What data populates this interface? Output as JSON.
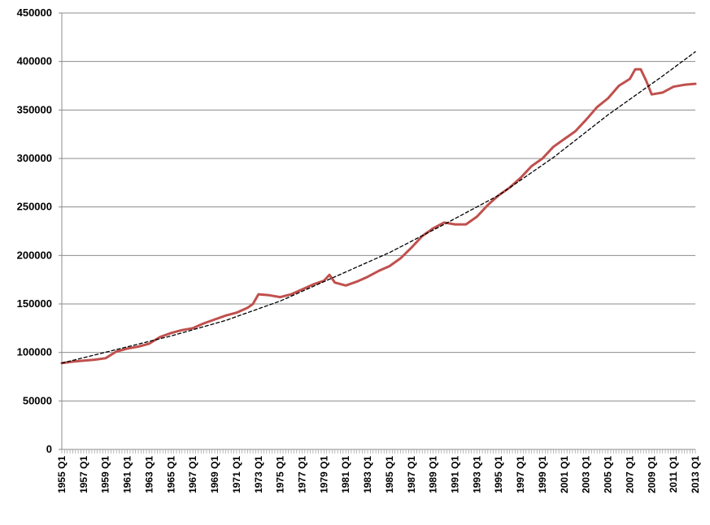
{
  "chart_data": {
    "type": "line",
    "title": "",
    "xlabel": "",
    "ylabel": "",
    "ylim": [
      0,
      450000
    ],
    "yticks": [
      0,
      50000,
      100000,
      150000,
      200000,
      250000,
      300000,
      350000,
      400000,
      450000
    ],
    "ytick_labels": [
      "0",
      "50000",
      "100000",
      "150000",
      "200000",
      "250000",
      "300000",
      "350000",
      "400000",
      "450000"
    ],
    "x_range": [
      "1955 Q1",
      "2013 Q1"
    ],
    "xtick_labels": [
      "1955 Q1",
      "1957 Q1",
      "1959 Q1",
      "1961 Q1",
      "1963 Q1",
      "1965 Q1",
      "1967 Q1",
      "1969 Q1",
      "1971 Q1",
      "1973 Q1",
      "1975 Q1",
      "1977 Q1",
      "1979 Q1",
      "1981 Q1",
      "1983 Q1",
      "1985 Q1",
      "1987 Q1",
      "1989 Q1",
      "1991 Q1",
      "1993 Q1",
      "1995 Q1",
      "1997 Q1",
      "1999 Q1",
      "2001 Q1",
      "2003 Q1",
      "2005 Q1",
      "2007 Q1",
      "2009 Q1",
      "2011 Q1",
      "2013 Q1"
    ],
    "grid": true,
    "legend": "none",
    "series": [
      {
        "style": "solid",
        "color": "#c0504d",
        "points": [
          [
            "1955 Q1",
            89000
          ],
          [
            "1956 Q1",
            90500
          ],
          [
            "1957 Q1",
            91500
          ],
          [
            "1958 Q1",
            92500
          ],
          [
            "1959 Q1",
            94000
          ],
          [
            "1960 Q1",
            101000
          ],
          [
            "1961 Q1",
            104000
          ],
          [
            "1962 Q1",
            106000
          ],
          [
            "1963 Q1",
            109000
          ],
          [
            "1964 Q1",
            116000
          ],
          [
            "1965 Q1",
            120000
          ],
          [
            "1966 Q1",
            123000
          ],
          [
            "1967 Q1",
            125000
          ],
          [
            "1968 Q1",
            130000
          ],
          [
            "1969 Q1",
            134000
          ],
          [
            "1970 Q1",
            138000
          ],
          [
            "1971 Q1",
            141000
          ],
          [
            "1972 Q1",
            146000
          ],
          [
            "1972 Q3",
            150000
          ],
          [
            "1973 Q1",
            160000
          ],
          [
            "1974 Q1",
            159000
          ],
          [
            "1975 Q1",
            157000
          ],
          [
            "1976 Q1",
            160000
          ],
          [
            "1977 Q1",
            165000
          ],
          [
            "1978 Q1",
            170000
          ],
          [
            "1979 Q1",
            174000
          ],
          [
            "1979 Q3",
            180000
          ],
          [
            "1980 Q1",
            172000
          ],
          [
            "1981 Q1",
            169000
          ],
          [
            "1982 Q1",
            173000
          ],
          [
            "1983 Q1",
            178000
          ],
          [
            "1984 Q1",
            184000
          ],
          [
            "1985 Q1",
            189000
          ],
          [
            "1986 Q1",
            197000
          ],
          [
            "1987 Q1",
            208000
          ],
          [
            "1988 Q1",
            220000
          ],
          [
            "1989 Q1",
            228000
          ],
          [
            "1990 Q1",
            234000
          ],
          [
            "1991 Q1",
            232000
          ],
          [
            "1992 Q1",
            232000
          ],
          [
            "1993 Q1",
            240000
          ],
          [
            "1994 Q1",
            252000
          ],
          [
            "1995 Q1",
            262000
          ],
          [
            "1996 Q1",
            270000
          ],
          [
            "1997 Q1",
            280000
          ],
          [
            "1998 Q1",
            292000
          ],
          [
            "1999 Q1",
            300000
          ],
          [
            "2000 Q1",
            312000
          ],
          [
            "2001 Q1",
            320000
          ],
          [
            "2002 Q1",
            328000
          ],
          [
            "2003 Q1",
            340000
          ],
          [
            "2004 Q1",
            353000
          ],
          [
            "2005 Q1",
            362000
          ],
          [
            "2006 Q1",
            375000
          ],
          [
            "2007 Q1",
            382000
          ],
          [
            "2007 Q3",
            392000
          ],
          [
            "2008 Q1",
            392000
          ],
          [
            "2008 Q3",
            380000
          ],
          [
            "2009 Q1",
            366000
          ],
          [
            "2010 Q1",
            368000
          ],
          [
            "2011 Q1",
            374000
          ],
          [
            "2012 Q1",
            376000
          ],
          [
            "2013 Q1",
            377000
          ]
        ]
      },
      {
        "style": "dashed",
        "color": "#000000",
        "points": [
          [
            "1955 Q1",
            89000
          ],
          [
            "1960 Q1",
            103000
          ],
          [
            "1965 Q1",
            117000
          ],
          [
            "1970 Q1",
            133000
          ],
          [
            "1975 Q1",
            153000
          ],
          [
            "1980 Q1",
            178000
          ],
          [
            "1985 Q1",
            203000
          ],
          [
            "1990 Q1",
            232000
          ],
          [
            "1995 Q1",
            262000
          ],
          [
            "2000 Q1",
            301000
          ],
          [
            "2005 Q1",
            345000
          ],
          [
            "2010 Q1",
            385000
          ],
          [
            "2013 Q1",
            410000
          ]
        ]
      }
    ]
  }
}
